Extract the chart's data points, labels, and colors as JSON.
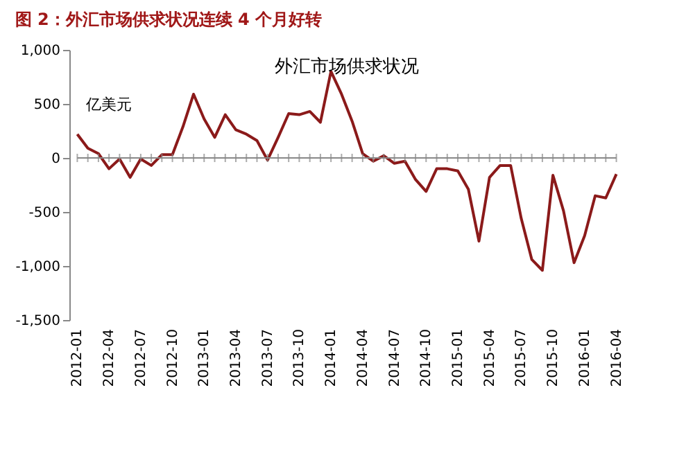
{
  "chart_data": {
    "type": "line",
    "title": "图 2：外汇市场供求状况连续 4 个月好转",
    "subtitle": "外汇市场供求状况",
    "ylabel": "亿美元",
    "categories": [
      "2012-01",
      null,
      null,
      "2012-04",
      null,
      null,
      "2012-07",
      null,
      null,
      "2012-10",
      null,
      null,
      "2013-01",
      null,
      null,
      "2013-04",
      null,
      null,
      "2013-07",
      null,
      null,
      "2013-10",
      null,
      null,
      "2014-01",
      null,
      null,
      "2014-04",
      null,
      null,
      "2014-07",
      null,
      null,
      "2014-10",
      null,
      null,
      "2015-01",
      null,
      null,
      "2015-04",
      null,
      null,
      "2015-07",
      null,
      null,
      "2015-10",
      null,
      null,
      "2016-01",
      null,
      null,
      "2016-04"
    ],
    "series": [
      {
        "color": "#8b1a1a",
        "values": [
          220,
          90,
          40,
          -100,
          -10,
          -180,
          -10,
          -70,
          30,
          30,
          290,
          590,
          360,
          190,
          400,
          260,
          220,
          160,
          -20,
          190,
          410,
          400,
          430,
          330,
          800,
          590,
          340,
          40,
          -30,
          20,
          -50,
          -30,
          -200,
          -310,
          -100,
          -100,
          -120,
          -290,
          -770,
          -180,
          -70,
          -70,
          -560,
          -940,
          -1040,
          -160,
          -490,
          -970,
          -720,
          -350,
          -370,
          -150
        ]
      }
    ],
    "ylim": [
      -1500,
      1000
    ],
    "yticks": [
      {
        "value": -1500,
        "label": "-1,500"
      },
      {
        "value": -1000,
        "label": "-1,000"
      },
      -500,
      0,
      500,
      {
        "value": 1000,
        "label": "1,000"
      }
    ],
    "grid": false,
    "marker": "none",
    "line_style": "solid"
  }
}
